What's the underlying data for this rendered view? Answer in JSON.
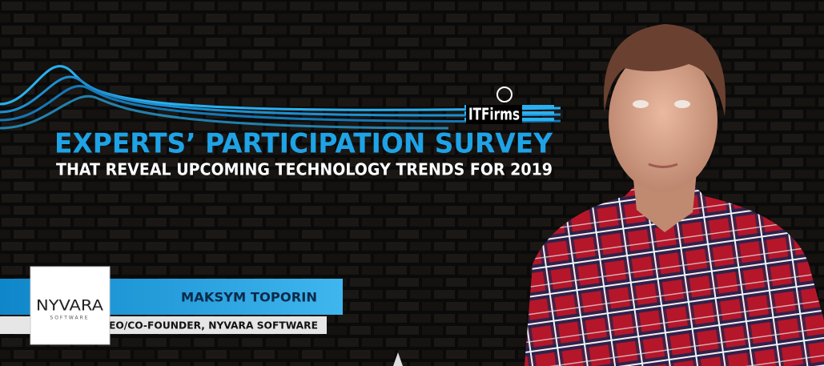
{
  "logo": "ITFirms",
  "title": "EXPERTS’ PARTICIPATION SURVEY",
  "subtitle": "THAT REVEAL UPCOMING TECHNOLOGY TRENDS FOR 2019",
  "company_logo": {
    "name": "NYVARA",
    "tagline": "SOFTWARE"
  },
  "person": {
    "name": "MAKSYM TOPORIN",
    "role": "CEO/CO-FOUNDER, NYVARA SOFTWARE"
  }
}
